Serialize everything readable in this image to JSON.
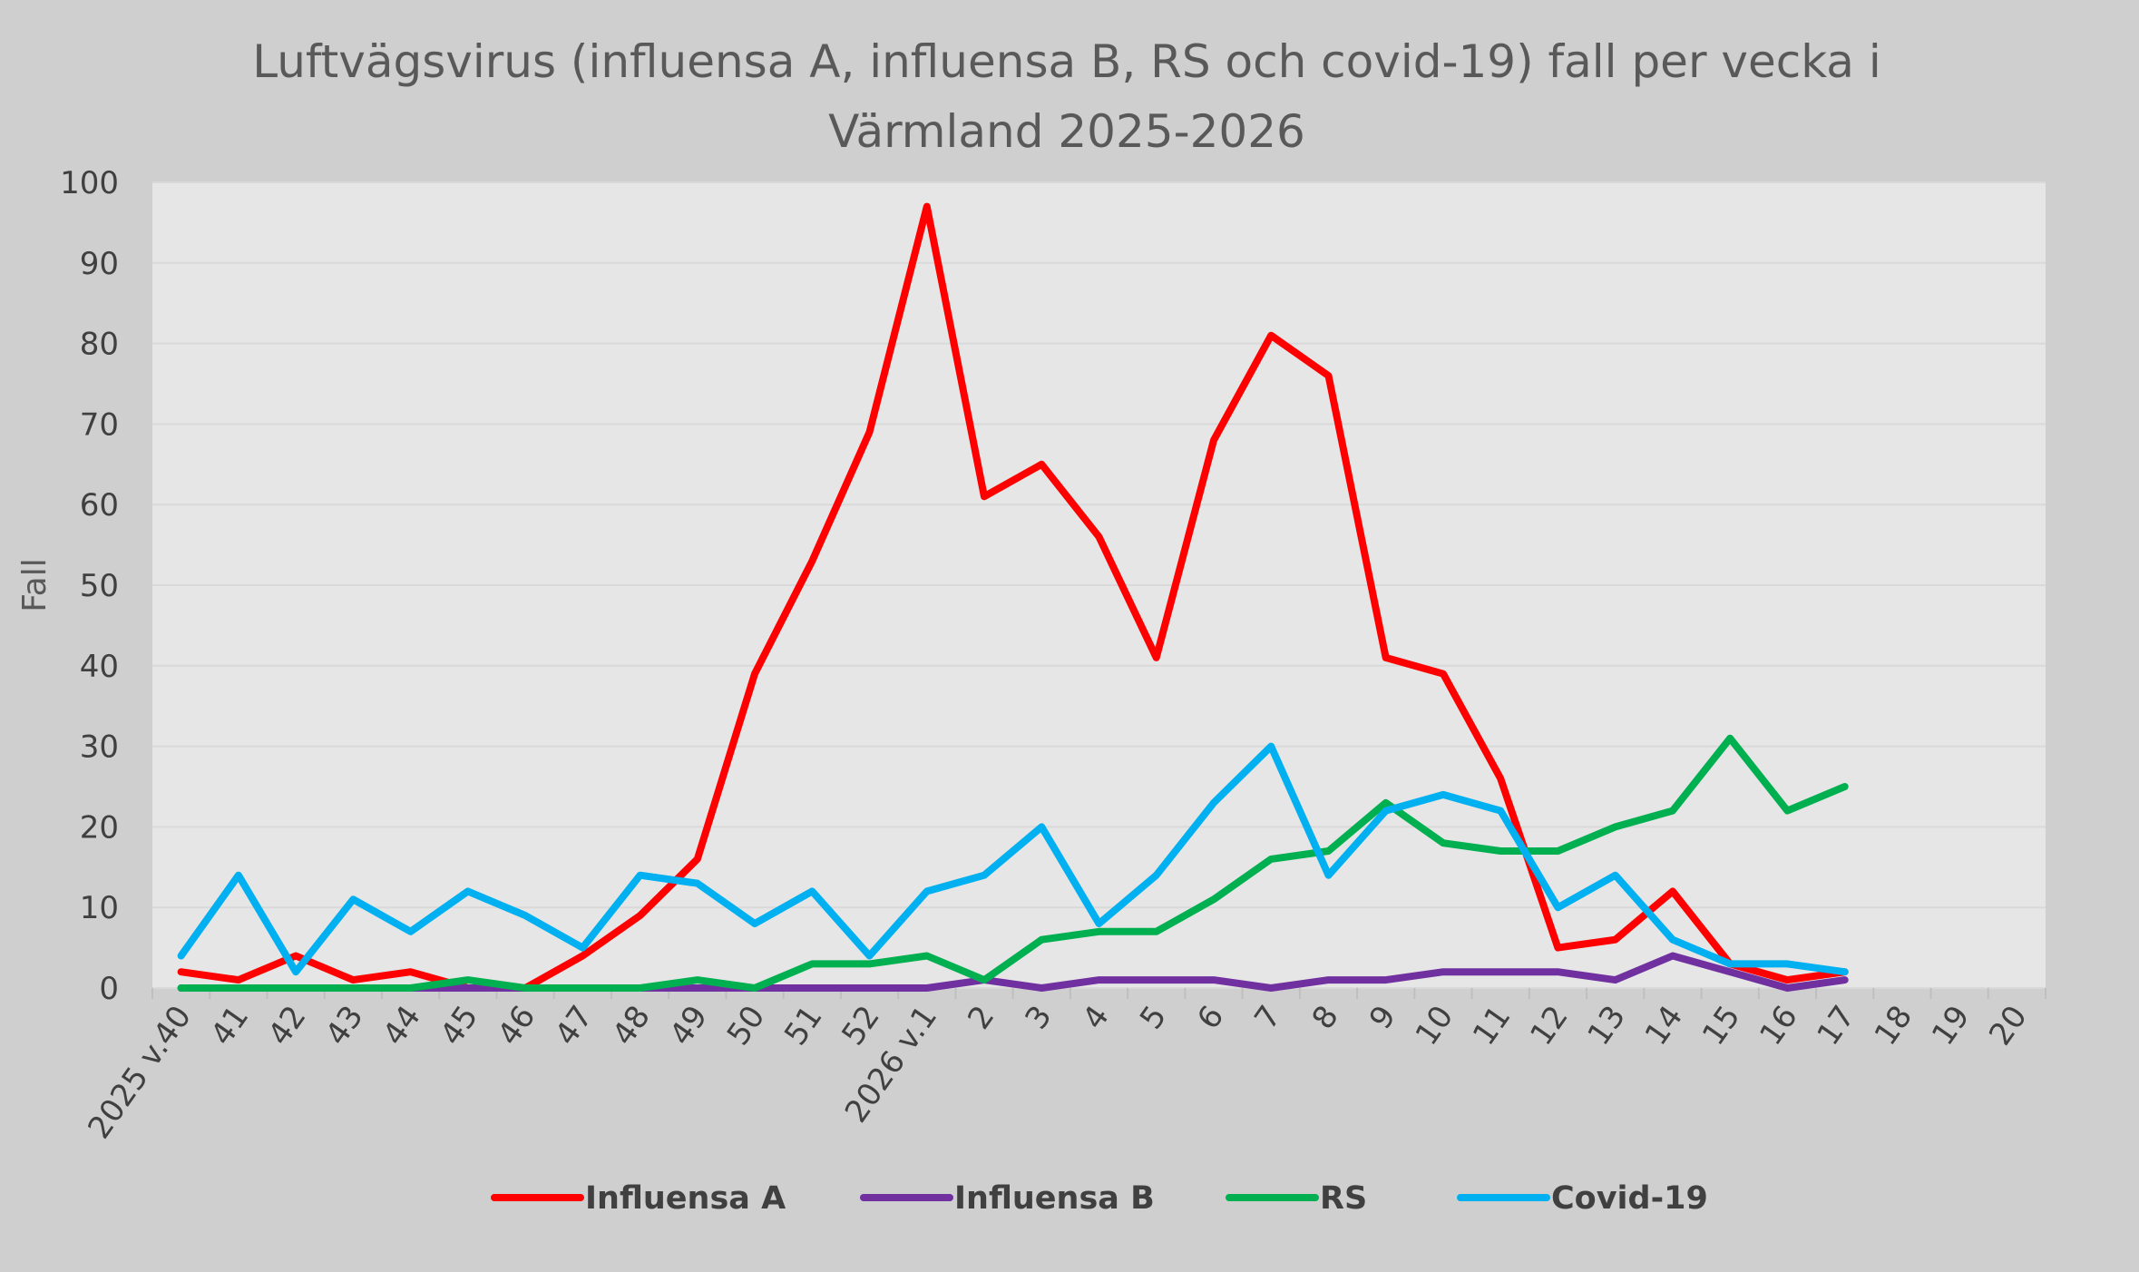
{
  "chart_data": {
    "type": "line",
    "title": "Luftvägsvirus (influensa A, influensa B, RS och covid-19) fall per vecka i Värmland 2025-2026",
    "title_lines": [
      "Luftvägsvirus (influensa A, influensa B, RS och covid-19) fall per vecka i",
      "Värmland 2025-2026"
    ],
    "xlabel": "",
    "ylabel": "Fall",
    "ylim": [
      0,
      100
    ],
    "yticks": [
      0,
      10,
      20,
      30,
      40,
      50,
      60,
      70,
      80,
      90,
      100
    ],
    "grid": true,
    "legend_position": "bottom",
    "categories": [
      "2025 v.40",
      "41",
      "42",
      "43",
      "44",
      "45",
      "46",
      "47",
      "48",
      "49",
      "50",
      "51",
      "52",
      "2026 v.1",
      "2",
      "3",
      "4",
      "5",
      "6",
      "7",
      "8",
      "9",
      "10",
      "11",
      "12",
      "13",
      "14",
      "15",
      "16",
      "17",
      "18",
      "19",
      "20"
    ],
    "series": [
      {
        "name": "Influensa A",
        "color": "#ff0000",
        "values": [
          2,
          1,
          4,
          1,
          2,
          0,
          0,
          4,
          9,
          16,
          39,
          53,
          69,
          97,
          61,
          65,
          56,
          41,
          68,
          81,
          76,
          41,
          39,
          26,
          5,
          6,
          12,
          3,
          1,
          2,
          null,
          null,
          null
        ]
      },
      {
        "name": "Influensa B",
        "color": "#7030a0",
        "values": [
          0,
          0,
          0,
          0,
          0,
          0,
          0,
          0,
          0,
          0,
          0,
          0,
          0,
          0,
          1,
          0,
          1,
          1,
          1,
          0,
          1,
          1,
          2,
          2,
          2,
          1,
          4,
          2,
          0,
          1,
          null,
          null,
          null
        ]
      },
      {
        "name": "RS",
        "color": "#00b050",
        "values": [
          0,
          0,
          0,
          0,
          0,
          1,
          0,
          0,
          0,
          1,
          0,
          3,
          3,
          4,
          1,
          6,
          7,
          7,
          11,
          16,
          17,
          23,
          18,
          17,
          17,
          20,
          22,
          31,
          22,
          25,
          null,
          null,
          null
        ]
      },
      {
        "name": "Covid-19",
        "color": "#00b0f0",
        "values": [
          4,
          14,
          2,
          11,
          7,
          12,
          9,
          5,
          14,
          13,
          8,
          12,
          4,
          12,
          14,
          20,
          8,
          14,
          23,
          30,
          14,
          22,
          24,
          22,
          10,
          14,
          6,
          3,
          3,
          2,
          null,
          null,
          null
        ]
      }
    ],
    "colors": {
      "background": "#d0cfd0",
      "plot_area": "#e6e6e6",
      "gridline": "#d9d9d9"
    }
  }
}
